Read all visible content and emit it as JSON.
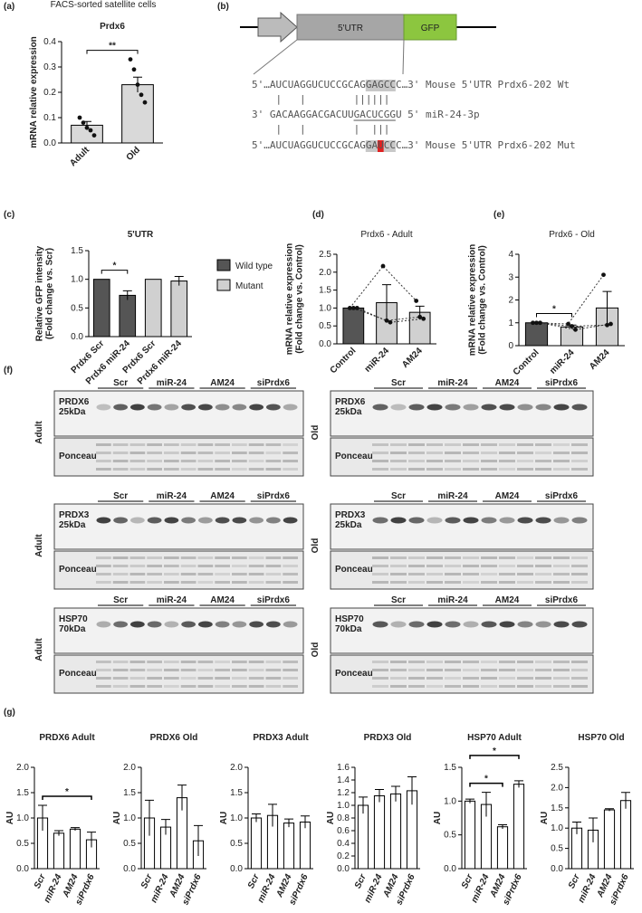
{
  "chart_data": [
    {
      "type": "bar",
      "panel": "(a)",
      "header": "FACS-sorted satellite cells",
      "title": "Prdx6",
      "ylabel": [
        "mRNA relative expression"
      ],
      "categories": [
        "Adult",
        "Old"
      ],
      "values": [
        0.07,
        0.23
      ],
      "errors": [
        0.015,
        0.03
      ],
      "points": [
        [
          0.1,
          0.08,
          0.06,
          0.05,
          0.03
        ],
        [
          0.33,
          0.29,
          0.23,
          0.19,
          0.16
        ]
      ],
      "color": "#d9d9d9",
      "ylim": [
        0,
        0.4
      ],
      "yticks": [
        {
          "value": 0,
          "label": "0.0"
        },
        {
          "value": 0.1,
          "label": "0.1"
        },
        {
          "value": 0.2,
          "label": "0.2"
        },
        {
          "value": 0.3,
          "label": "0.3"
        },
        {
          "value": 0.4,
          "label": "0.4"
        }
      ],
      "significance": [
        {
          "from": 0,
          "to": 1,
          "label": "**"
        }
      ]
    },
    {
      "type": "bar",
      "panel": "(c)",
      "title": "5'UTR",
      "ylabel": [
        "Relative GFP intensity",
        "(Fold change vs. Scr)"
      ],
      "categories": [
        "Prdx6 Scr",
        "Prdx6 miR-24",
        "Prdx6 Scr",
        "Prdx6 miR-24"
      ],
      "series": [
        {
          "name": "Wild type",
          "color": "#555555",
          "values": [
            1.0,
            0.72,
            null,
            null
          ],
          "errors": [
            null,
            0.08,
            null,
            null
          ]
        },
        {
          "name": "Mutant",
          "color": "#d0d0d0",
          "values": [
            null,
            null,
            1.0,
            0.97
          ],
          "errors": [
            null,
            null,
            null,
            0.08
          ]
        }
      ],
      "ylim": [
        0,
        1.5
      ],
      "yticks": [
        {
          "value": 0,
          "label": "0.0"
        },
        {
          "value": 0.5,
          "label": "0.5"
        },
        {
          "value": 1,
          "label": "1.0"
        },
        {
          "value": 1.5,
          "label": "1.5"
        }
      ],
      "significance": [
        {
          "from": 0,
          "to": 1,
          "label": "*"
        }
      ]
    },
    {
      "type": "bar",
      "panel": "(d)",
      "title": "Prdx6 - Adult",
      "ylabel": [
        "mRNA relative expression",
        "(Fold change vs. Control)"
      ],
      "categories": [
        "Control",
        "miR-24",
        "AM24"
      ],
      "values": [
        1.0,
        1.15,
        0.88
      ],
      "errors": [
        0.01,
        0.5,
        0.17
      ],
      "points": [
        [
          1,
          1,
          1
        ],
        [
          2.17,
          0.65,
          0.6
        ],
        [
          1.2,
          0.75,
          0.7
        ]
      ],
      "colors": [
        "#555555",
        "#d0d0d0",
        "#d0d0d0"
      ],
      "connect": true,
      "ylim": [
        0,
        2.5
      ],
      "yticks": [
        {
          "value": 0,
          "label": "0.0"
        },
        {
          "value": 0.5,
          "label": "0.5"
        },
        {
          "value": 1,
          "label": "1.0"
        },
        {
          "value": 1.5,
          "label": "1.5"
        },
        {
          "value": 2,
          "label": "2.0"
        },
        {
          "value": 2.5,
          "label": "2.5"
        }
      ]
    },
    {
      "type": "bar",
      "panel": "(e)",
      "title": "Prdx6 - Old",
      "ylabel": [
        "mRNA relative expression",
        "(Fold change vs. Control)"
      ],
      "categories": [
        "Control",
        "miR-24",
        "AM24"
      ],
      "values": [
        1.0,
        0.82,
        1.65
      ],
      "errors": [
        0.01,
        0.08,
        0.72
      ],
      "points": [
        [
          1,
          1,
          1
        ],
        [
          0.95,
          0.85,
          0.7
        ],
        [
          3.1,
          0.9,
          0.95
        ]
      ],
      "colors": [
        "#555555",
        "#d0d0d0",
        "#d0d0d0"
      ],
      "connect": true,
      "ylim": [
        0,
        4
      ],
      "yticks": [
        0,
        1,
        2,
        3,
        4
      ],
      "significance": [
        {
          "from": 0,
          "to": 1,
          "label": "*"
        }
      ]
    },
    {
      "type": "bar",
      "panel": "(g)",
      "title": "PRDX6 Adult",
      "ylabel": [
        "AU"
      ],
      "italic": true,
      "categories": [
        "Scr",
        "miR-24",
        "AM24",
        "siPrdx6"
      ],
      "values": [
        1.0,
        0.7,
        0.78,
        0.57
      ],
      "errors": [
        0.25,
        0.05,
        0.03,
        0.15
      ],
      "color": "#ffffff",
      "ylim": [
        0,
        2
      ],
      "yticks": [
        {
          "value": 0,
          "label": "0.0"
        },
        {
          "value": 0.5,
          "label": "0.5"
        },
        {
          "value": 1,
          "label": "1.0"
        },
        {
          "value": 1.5,
          "label": "1.5"
        },
        {
          "value": 2,
          "label": "2.0"
        }
      ],
      "significance": [
        {
          "from": 0,
          "to": 3,
          "label": "*"
        }
      ]
    },
    {
      "type": "bar",
      "title": "PRDX6 Old",
      "ylabel": [
        "AU"
      ],
      "italic": true,
      "categories": [
        "Scr",
        "miR-24",
        "AM24",
        "siPrdx6"
      ],
      "values": [
        1.0,
        0.82,
        1.4,
        0.55
      ],
      "errors": [
        0.35,
        0.15,
        0.25,
        0.3
      ],
      "color": "#ffffff",
      "ylim": [
        0,
        2
      ],
      "yticks": [
        {
          "value": 0,
          "label": "0.0"
        },
        {
          "value": 0.5,
          "label": "0.5"
        },
        {
          "value": 1,
          "label": "1.0"
        },
        {
          "value": 1.5,
          "label": "1.5"
        },
        {
          "value": 2,
          "label": "2.0"
        }
      ]
    },
    {
      "type": "bar",
      "title": "PRDX3 Adult",
      "ylabel": [
        "AU"
      ],
      "italic": true,
      "categories": [
        "Scr",
        "miR-24",
        "AM24",
        "siPrdx6"
      ],
      "values": [
        1.0,
        1.05,
        0.9,
        0.92
      ],
      "errors": [
        0.08,
        0.22,
        0.08,
        0.12
      ],
      "color": "#ffffff",
      "ylim": [
        0,
        2
      ],
      "yticks": [
        {
          "value": 0,
          "label": "0.0"
        },
        {
          "value": 0.5,
          "label": "0.5"
        },
        {
          "value": 1,
          "label": "1.0"
        },
        {
          "value": 1.5,
          "label": "1.5"
        },
        {
          "value": 2,
          "label": "2.0"
        }
      ]
    },
    {
      "type": "bar",
      "title": "PRDX3 Old",
      "ylabel": [
        "AU"
      ],
      "italic": true,
      "categories": [
        "Scr",
        "miR-24",
        "AM24",
        "siPrdx6"
      ],
      "values": [
        1.0,
        1.15,
        1.18,
        1.23
      ],
      "errors": [
        0.13,
        0.1,
        0.12,
        0.22
      ],
      "color": "#ffffff",
      "ylim": [
        0,
        1.6
      ],
      "yticks": [
        {
          "value": 0,
          "label": "0.0"
        },
        {
          "value": 0.2,
          "label": "0.2"
        },
        {
          "value": 0.4,
          "label": "0.4"
        },
        {
          "value": 0.6,
          "label": "0.6"
        },
        {
          "value": 0.8,
          "label": "0.8"
        },
        {
          "value": 1,
          "label": "1.0"
        },
        {
          "value": 1.2,
          "label": "1.2"
        },
        {
          "value": 1.4,
          "label": "1.4"
        },
        {
          "value": 1.6,
          "label": "1.6"
        }
      ]
    },
    {
      "type": "bar",
      "title": "HSP70 Adult",
      "ylabel": [
        "AU"
      ],
      "italic": true,
      "categories": [
        "Scr",
        "miR-24",
        "AM24",
        "siPrdx6"
      ],
      "values": [
        1.0,
        0.95,
        0.62,
        1.25
      ],
      "errors": [
        0.03,
        0.18,
        0.03,
        0.05
      ],
      "color": "#ffffff",
      "ylim": [
        0,
        1.5
      ],
      "yticks": [
        {
          "value": 0,
          "label": "0.0"
        },
        {
          "value": 0.5,
          "label": "0.5"
        },
        {
          "value": 1,
          "label": "1.0"
        },
        {
          "value": 1.5,
          "label": "1.5"
        }
      ],
      "significance": [
        {
          "from": 0,
          "to": 2,
          "label": "*"
        },
        {
          "from": 0,
          "to": 3,
          "label": "*"
        }
      ]
    },
    {
      "type": "bar",
      "title": "HSP70 Old",
      "ylabel": [
        "AU"
      ],
      "italic": true,
      "categories": [
        "Scr",
        "miR-24",
        "AM24",
        "siPrdx6"
      ],
      "values": [
        1.0,
        0.95,
        1.45,
        1.68
      ],
      "errors": [
        0.15,
        0.3,
        0.03,
        0.2
      ],
      "color": "#ffffff",
      "ylim": [
        0,
        2.5
      ],
      "yticks": [
        {
          "value": 0,
          "label": "0.0"
        },
        {
          "value": 0.5,
          "label": "0.5"
        },
        {
          "value": 1,
          "label": "1.0"
        },
        {
          "value": 1.5,
          "label": "1.5"
        },
        {
          "value": 2,
          "label": "2.0"
        },
        {
          "value": 2.5,
          "label": "2.5"
        }
      ]
    }
  ],
  "construct": {
    "panel": "(b)",
    "utr": "5'UTR",
    "reporter": "GFP",
    "lines": [
      "5'…AUCUAGGUCUCCGCAGGAGCCC…3' Mouse 5'UTR Prdx6-202 Wt",
      "    |   |        ||||||",
      "3' GACAAGGACGACUUGACUCGGU 5' miR-24-3p",
      "    |   |        |  |||",
      "5'…AUCUAGGUCUCCGCAGGAUCCC…3' Mouse 5'UTR Prdx6-202 Mut"
    ]
  },
  "blots": {
    "panel": "(f)",
    "stain": "Ponceau",
    "lanes": [
      "Scr",
      "miR-24",
      "AM24",
      "siPrdx6"
    ],
    "panels": [
      {
        "group": "Adult",
        "protein": "PRDX6",
        "size": "25kDa"
      },
      {
        "group": "Old",
        "protein": "PRDX6",
        "size": "25kDa"
      },
      {
        "group": "Adult",
        "protein": "PRDX3",
        "size": "25kDa"
      },
      {
        "group": "Old",
        "protein": "PRDX3",
        "size": "25kDa"
      },
      {
        "group": "Adult",
        "protein": "HSP70",
        "size": "70kDa"
      },
      {
        "group": "Old",
        "protein": "HSP70",
        "size": "70kDa"
      }
    ]
  }
}
